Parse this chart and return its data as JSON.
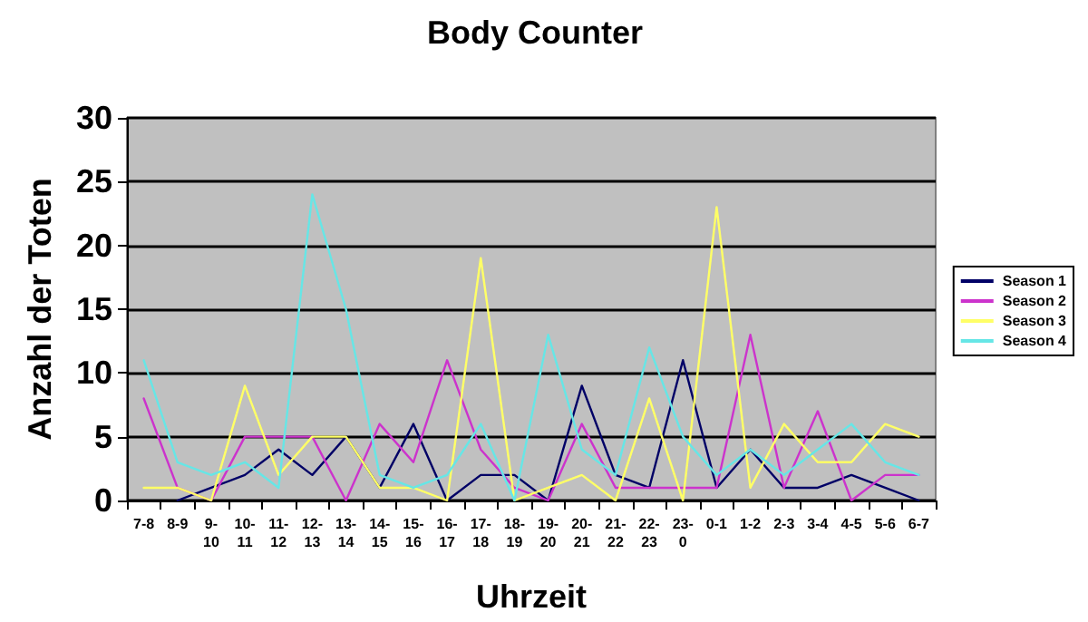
{
  "chart_data": {
    "type": "line",
    "title": "Body Counter",
    "xlabel": "Uhrzeit",
    "ylabel": "Anzahl der Toten",
    "categories": [
      "7-8",
      "8-9",
      "9-10",
      "10-11",
      "11-12",
      "12-13",
      "13-14",
      "14-15",
      "15-16",
      "16-17",
      "17-18",
      "18-19",
      "19-20",
      "20-21",
      "21-22",
      "22-23",
      "23-0",
      "0-1",
      "1-2",
      "2-3",
      "3-4",
      "4-5",
      "5-6",
      "6-7"
    ],
    "series": [
      {
        "name": "Season 1",
        "color": "#000066",
        "values": [
          null,
          0,
          1,
          2,
          4,
          2,
          5,
          1,
          6,
          0,
          2,
          2,
          0,
          9,
          2,
          1,
          11,
          1,
          4,
          1,
          1,
          2,
          1,
          0
        ]
      },
      {
        "name": "Season 2",
        "color": "#cc33cc",
        "values": [
          8,
          1,
          0,
          5,
          5,
          5,
          0,
          6,
          3,
          11,
          4,
          1,
          0,
          6,
          1,
          1,
          1,
          1,
          13,
          1,
          7,
          0,
          2,
          2
        ]
      },
      {
        "name": "Season 3",
        "color": "#ffff66",
        "values": [
          1,
          1,
          0,
          9,
          2,
          5,
          5,
          1,
          1,
          0,
          19,
          0,
          1,
          2,
          0,
          8,
          0,
          23,
          1,
          6,
          3,
          3,
          6,
          5
        ]
      },
      {
        "name": "Season 4",
        "color": "#66e6e6",
        "values": [
          11,
          3,
          2,
          3,
          1,
          24,
          15,
          2,
          1,
          2,
          6,
          0,
          13,
          4,
          2,
          12,
          5,
          2,
          4,
          2,
          4,
          6,
          3,
          2
        ]
      }
    ],
    "ylim": [
      0,
      30
    ],
    "yticks": [
      0,
      5,
      10,
      15,
      20,
      25,
      30
    ],
    "grid": "y",
    "legend": "right",
    "marker": "none",
    "line_style": "solid"
  }
}
